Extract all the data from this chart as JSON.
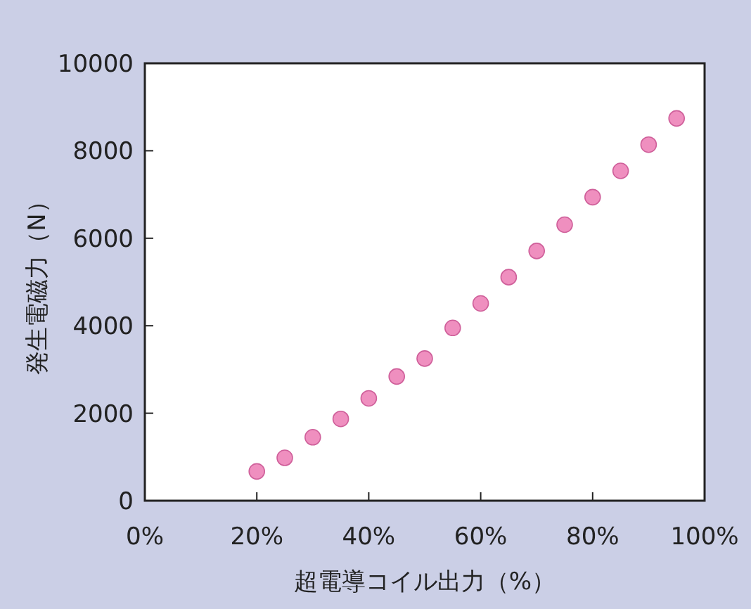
{
  "chart_data": {
    "type": "scatter",
    "xlabel": "超電導コイル出力（%）",
    "ylabel": "発生電磁力（N）",
    "x": [
      20,
      25,
      30,
      35,
      40,
      45,
      50,
      55,
      60,
      65,
      70,
      75,
      80,
      85,
      90,
      95
    ],
    "series": [
      {
        "color": "#ef8fbf",
        "values": [
          670,
          980,
          1450,
          1870,
          2340,
          2840,
          3250,
          3950,
          4510,
          5110,
          5710,
          6310,
          6940,
          7540,
          8140,
          8740
        ]
      }
    ],
    "xlim": [
      0,
      100
    ],
    "xticks": [
      {
        "value": 0,
        "label": "0%"
      },
      {
        "value": 20,
        "label": "20%"
      },
      {
        "value": 40,
        "label": "40%"
      },
      {
        "value": 60,
        "label": "60%"
      },
      {
        "value": 80,
        "label": "80%"
      },
      {
        "value": 100,
        "label": "100%"
      }
    ],
    "ylim": [
      0,
      10000
    ],
    "yticks": [
      0,
      2000,
      4000,
      6000,
      8000,
      10000
    ],
    "marker": "circle",
    "grid": false
  }
}
